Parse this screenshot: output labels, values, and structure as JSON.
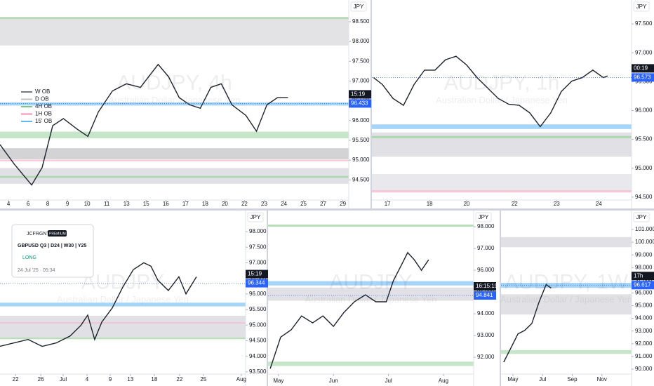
{
  "chart_data": [
    {
      "type": "line",
      "currency": "JPY",
      "watermark": "AUDJPY, 4h",
      "subtitle": "Australian Dollar / Japanese Yen",
      "color": "#1e222d",
      "countdown": "15:19",
      "last_price": 96.433,
      "x": [
        -0.43,
        0.29,
        1.18,
        1.71,
        2.25,
        2.79,
        3.5,
        4.04,
        4.57,
        5.29,
        6.0,
        6.71,
        7.61,
        8.14,
        8.68,
        9.21,
        9.75,
        10.29,
        10.82,
        11.36,
        12.07,
        12.61,
        13.14,
        13.68,
        14.21
      ],
      "values": [
        95.39,
        94.9,
        94.37,
        94.81,
        95.87,
        96.05,
        95.78,
        95.6,
        96.22,
        96.75,
        96.93,
        96.84,
        97.42,
        97.11,
        96.58,
        96.4,
        96.31,
        96.84,
        96.93,
        96.4,
        96.13,
        95.73,
        96.4,
        96.58,
        96.58
      ],
      "xlim": [
        -0.43,
        17.3
      ],
      "ylim": [
        93.99,
        99.05
      ],
      "xticks": [
        {
          "value": 0,
          "label": "4"
        },
        {
          "value": 1,
          "label": "6"
        },
        {
          "value": 2,
          "label": "8"
        },
        {
          "value": 3,
          "label": "9"
        },
        {
          "value": 4,
          "label": "10"
        },
        {
          "value": 5,
          "label": "11"
        },
        {
          "value": 6,
          "label": "13"
        },
        {
          "value": 7,
          "label": "15"
        },
        {
          "value": 8,
          "label": "16"
        },
        {
          "value": 9,
          "label": "17"
        },
        {
          "value": 10,
          "label": "18"
        },
        {
          "value": 11,
          "label": "20"
        },
        {
          "value": 12,
          "label": "22"
        },
        {
          "value": 13,
          "label": "23"
        },
        {
          "value": 14,
          "label": "24"
        },
        {
          "value": 15,
          "label": "25"
        },
        {
          "value": 16,
          "label": "27"
        },
        {
          "value": 17,
          "label": "29"
        }
      ],
      "yticks": [
        {
          "value": 98.5,
          "label": "98.500"
        },
        {
          "value": 98,
          "label": "98.000"
        },
        {
          "value": 97.5,
          "label": "97.500"
        },
        {
          "value": 97,
          "label": "97.000"
        },
        {
          "value": 96.5,
          "label": "96.500"
        },
        {
          "value": 96,
          "label": "96.000"
        },
        {
          "value": 95.5,
          "label": "95.500"
        },
        {
          "value": 95,
          "label": "95.000"
        },
        {
          "value": 94.5,
          "label": "94.500"
        }
      ],
      "zones": [
        {
          "lo": 97.9,
          "hi": 98.6,
          "color": "#dcdce0"
        },
        {
          "lo": 98.57,
          "hi": 98.62,
          "color": "#a5d6a7"
        },
        {
          "lo": 96.38,
          "hi": 96.46,
          "color": "#90caf9"
        },
        {
          "lo": 95.55,
          "hi": 95.72,
          "color": "#b9e0bb"
        },
        {
          "lo": 95.02,
          "hi": 95.3,
          "color": "#c8c8cc"
        },
        {
          "lo": 94.97,
          "hi": 95.01,
          "color": "#f8bbd0"
        },
        {
          "lo": 94.4,
          "hi": 94.8,
          "color": "#dadade"
        },
        {
          "lo": 94.55,
          "hi": 94.6,
          "color": "#a5d6a7"
        }
      ],
      "legend": [
        {
          "label": "W OB",
          "color": "#787b86"
        },
        {
          "label": "D OB",
          "color": "#c0c0c4"
        },
        {
          "label": "4H OB",
          "color": "#81c784"
        },
        {
          "label": "1H OB",
          "color": "#f48fb1"
        },
        {
          "label": "15' OB",
          "color": "#64b5f6"
        }
      ]
    },
    {
      "type": "line",
      "currency": "JPY",
      "watermark": "AUDJPY, 1h",
      "subtitle": "Australian Dollar / Japanese Yen",
      "color": "#1e222d",
      "countdown": "00:19",
      "last_price": 96.573,
      "x": [
        -0.33,
        -0.12,
        0.13,
        0.38,
        0.63,
        0.88,
        1.13,
        1.38,
        1.63,
        1.88,
        2.13,
        2.38,
        2.63,
        2.88,
        3.13,
        3.38,
        3.63,
        3.88,
        4.13,
        4.38,
        4.63,
        4.88,
        5.13,
        5.23
      ],
      "values": [
        96.57,
        96.45,
        96.21,
        96.09,
        96.45,
        96.7,
        96.7,
        96.88,
        96.94,
        96.79,
        96.57,
        96.39,
        96.21,
        96.11,
        96.09,
        95.96,
        95.72,
        95.96,
        96.33,
        96.51,
        96.57,
        96.7,
        96.57,
        96.6
      ],
      "xlim": [
        -0.37,
        5.8
      ],
      "ylim": [
        94.45,
        97.915
      ],
      "xticks": [
        {
          "value": 0,
          "label": "17"
        },
        {
          "value": 1,
          "label": "18"
        },
        {
          "value": 1.88,
          "label": "20"
        },
        {
          "value": 3.02,
          "label": "22"
        },
        {
          "value": 4.02,
          "label": "23"
        },
        {
          "value": 5.02,
          "label": "24"
        }
      ],
      "yticks": [
        {
          "value": 97.5,
          "label": "97.500"
        },
        {
          "value": 97,
          "label": "97.000"
        },
        {
          "value": 96.5,
          "label": "96.500"
        },
        {
          "value": 96,
          "label": "96.000"
        },
        {
          "value": 95.5,
          "label": "95.500"
        },
        {
          "value": 95,
          "label": "95.000"
        },
        {
          "value": 94.5,
          "label": "94.500"
        }
      ],
      "zones": [
        {
          "lo": 95.68,
          "hi": 95.76,
          "color": "#90caf9"
        },
        {
          "lo": 95.2,
          "hi": 95.62,
          "color": "#dadade"
        },
        {
          "lo": 95.52,
          "hi": 95.56,
          "color": "#a5d6a7"
        },
        {
          "lo": 94.6,
          "hi": 94.9,
          "color": "#e4e4e8"
        },
        {
          "lo": 94.58,
          "hi": 94.62,
          "color": "#f8bbd0"
        }
      ]
    },
    {
      "type": "line",
      "currency": "JPY",
      "watermark": "AUDJPY",
      "subtitle": "Australian Dollar / Japanese Yen",
      "color": "#1e222d",
      "countdown": "15:19",
      "last_price": 96.344,
      "x": [
        -0.65,
        -0.06,
        0.53,
        1.12,
        1.71,
        2.29,
        2.74,
        3.03,
        3.32,
        3.62,
        4.06,
        4.5,
        4.94,
        5.38,
        5.68,
        5.97,
        6.41,
        6.85,
        7.15,
        7.59
      ],
      "values": [
        94.32,
        94.43,
        94.54,
        94.32,
        94.43,
        94.65,
        94.99,
        95.32,
        94.54,
        95.1,
        95.55,
        96.22,
        96.78,
        97.0,
        96.89,
        96.44,
        96.11,
        96.55,
        96.0,
        96.55
      ],
      "xlim": [
        -0.65,
        9.65
      ],
      "ylim": [
        93.43,
        98.45
      ],
      "xticks": [
        {
          "value": 0,
          "label": "22"
        },
        {
          "value": 1.06,
          "label": "26"
        },
        {
          "value": 2,
          "label": "Jul"
        },
        {
          "value": 3,
          "label": "4"
        },
        {
          "value": 3.97,
          "label": "9"
        },
        {
          "value": 4.82,
          "label": "13"
        },
        {
          "value": 5.82,
          "label": "18"
        },
        {
          "value": 6.88,
          "label": "22"
        },
        {
          "value": 7.88,
          "label": "25"
        },
        {
          "value": 9.47,
          "label": "Aug"
        }
      ],
      "yticks": [
        {
          "value": 98,
          "label": "98.000"
        },
        {
          "value": 97.5,
          "label": "97.500"
        },
        {
          "value": 97,
          "label": "97.000"
        },
        {
          "value": 96.5,
          "label": "96.500"
        },
        {
          "value": 96,
          "label": "96.000"
        },
        {
          "value": 95.5,
          "label": "95.500"
        },
        {
          "value": 95,
          "label": "95.000"
        },
        {
          "value": 94.5,
          "label": "94.500"
        },
        {
          "value": 94,
          "label": "94.000"
        },
        {
          "value": 93.5,
          "label": "93.500"
        }
      ],
      "zones": [
        {
          "lo": 95.6,
          "hi": 95.72,
          "color": "#90caf9"
        },
        {
          "lo": 94.6,
          "hi": 95.3,
          "color": "#dadade"
        },
        {
          "lo": 94.55,
          "hi": 94.6,
          "color": "#a5d6a7"
        },
        {
          "lo": 95.05,
          "hi": 95.09,
          "color": "#f8bbd0"
        }
      ],
      "idea_card": {
        "author": "JCFRGNT",
        "badge": "PREMIUM",
        "title": "GBPUSD Q3 | D24 | W30 | Y25",
        "direction": "LONG",
        "date": "24 Jul '25 · 05:34"
      }
    },
    {
      "type": "line",
      "currency": "JPY",
      "watermark": "AUDJPY",
      "subtitle": "Australian Dollar / Japanese Yen",
      "color": "#1e222d",
      "countdown": "16:15:19",
      "last_price": 94.841,
      "x": [
        -0.15,
        0.04,
        0.23,
        0.42,
        0.62,
        0.81,
        1.0,
        1.19,
        1.38,
        1.58,
        1.77,
        1.96,
        2.09,
        2.22,
        2.35,
        2.47,
        2.6,
        2.73
      ],
      "values": [
        91.48,
        92.93,
        93.26,
        93.9,
        93.58,
        93.9,
        93.42,
        94.06,
        94.55,
        94.87,
        94.55,
        94.55,
        95.52,
        96.16,
        96.81,
        96.48,
        96.0,
        96.48
      ],
      "xlim": [
        -0.19,
        3.55
      ],
      "ylim": [
        91.23,
        98.42
      ],
      "xticks": [
        {
          "value": 0,
          "label": "May"
        },
        {
          "value": 1,
          "label": "Jun"
        },
        {
          "value": 2,
          "label": "Jul"
        },
        {
          "value": 3,
          "label": "Aug"
        }
      ],
      "yticks": [
        {
          "value": 98,
          "label": "98.000"
        },
        {
          "value": 97,
          "label": "97.000"
        },
        {
          "value": 96,
          "label": "96.000"
        },
        {
          "value": 95,
          "label": "95.000"
        },
        {
          "value": 94,
          "label": "94.000"
        },
        {
          "value": 93,
          "label": "93.000"
        },
        {
          "value": 92,
          "label": "92.000"
        }
      ],
      "zones": [
        {
          "lo": 98.0,
          "hi": 98.1,
          "color": "#a5d6a7"
        },
        {
          "lo": 95.3,
          "hi": 95.5,
          "color": "#90caf9"
        },
        {
          "lo": 94.6,
          "hi": 95.2,
          "color": "#dadade"
        },
        {
          "lo": 91.6,
          "hi": 91.8,
          "color": "#b9e0bb"
        }
      ]
    },
    {
      "type": "line",
      "currency": "JPY",
      "watermark": "AUDJPY, 1W",
      "subtitle": "Australian Dollar / Japanese Yen",
      "color": "#1e222d",
      "countdown": "17h",
      "last_price": 96.617,
      "x": [
        -0.31,
        -0.07,
        0.17,
        0.4,
        0.64,
        0.88,
        1.12,
        1.29
      ],
      "values": [
        90.55,
        91.66,
        92.77,
        93.05,
        93.61,
        95.27,
        96.66,
        96.38
      ],
      "xlim": [
        -0.4,
        4.0
      ],
      "ylim": [
        89.61,
        101.94
      ],
      "xticks": [
        {
          "value": 0,
          "label": "May"
        },
        {
          "value": 1,
          "label": "Jul"
        },
        {
          "value": 2,
          "label": "Sep"
        },
        {
          "value": 3,
          "label": "Nov"
        }
      ],
      "yticks": [
        {
          "value": 101,
          "label": "101.000"
        },
        {
          "value": 100,
          "label": "100.000"
        },
        {
          "value": 99,
          "label": "99.000"
        },
        {
          "value": 98,
          "label": "98.000"
        },
        {
          "value": 97,
          "label": "97.000"
        },
        {
          "value": 96,
          "label": "96.000"
        },
        {
          "value": 95,
          "label": "95.000"
        },
        {
          "value": 94,
          "label": "94.000"
        },
        {
          "value": 93,
          "label": "93.000"
        },
        {
          "value": 92,
          "label": "92.000"
        },
        {
          "value": 91,
          "label": "91.000"
        },
        {
          "value": 90,
          "label": "90.000"
        }
      ],
      "zones": [
        {
          "lo": 99.6,
          "hi": 100.4,
          "color": "#dadade"
        },
        {
          "lo": 96.4,
          "hi": 96.8,
          "color": "#90caf9"
        },
        {
          "lo": 94.3,
          "hi": 95.9,
          "color": "#dadade"
        },
        {
          "lo": 91.2,
          "hi": 91.5,
          "color": "#b9e0bb"
        }
      ]
    }
  ]
}
